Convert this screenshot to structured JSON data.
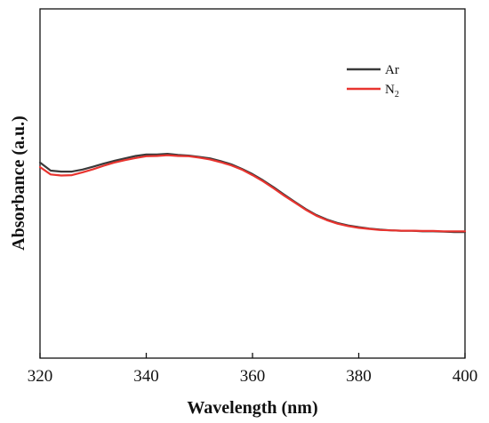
{
  "chart_data": {
    "type": "line",
    "xlabel": "Wavelength (nm)",
    "ylabel": "Absorbance (a.u.)",
    "xlim": [
      320,
      400
    ],
    "ylim": [
      0,
      1
    ],
    "x_ticks": [
      "320",
      "340",
      "360",
      "380",
      "400"
    ],
    "grid": false,
    "legend_position": "top-right",
    "series": [
      {
        "name": "Ar",
        "legend_main": "Ar",
        "legend_sub": "",
        "color": "#3a3a3a",
        "x": [
          320,
          322,
          324,
          326,
          328,
          330,
          332,
          334,
          336,
          338,
          340,
          342,
          344,
          346,
          348,
          350,
          352,
          354,
          356,
          358,
          360,
          362,
          364,
          366,
          368,
          370,
          372,
          374,
          376,
          378,
          380,
          382,
          384,
          386,
          388,
          390,
          392,
          394,
          396,
          398,
          400
        ],
        "values": [
          0.56,
          0.537,
          0.534,
          0.534,
          0.54,
          0.548,
          0.557,
          0.565,
          0.572,
          0.579,
          0.583,
          0.583,
          0.585,
          0.582,
          0.58,
          0.576,
          0.572,
          0.564,
          0.555,
          0.542,
          0.527,
          0.509,
          0.489,
          0.468,
          0.447,
          0.427,
          0.41,
          0.397,
          0.387,
          0.38,
          0.375,
          0.371,
          0.368,
          0.366,
          0.365,
          0.365,
          0.363,
          0.363,
          0.362,
          0.361,
          0.361
        ]
      },
      {
        "name": "N2",
        "legend_main": "N",
        "legend_sub": "2",
        "color": "#e8342f",
        "x": [
          320,
          322,
          324,
          326,
          328,
          330,
          332,
          334,
          336,
          338,
          340,
          342,
          344,
          346,
          348,
          350,
          352,
          354,
          356,
          358,
          360,
          362,
          364,
          366,
          368,
          370,
          372,
          374,
          376,
          378,
          380,
          382,
          384,
          386,
          388,
          390,
          392,
          394,
          396,
          398,
          400
        ],
        "values": [
          0.547,
          0.526,
          0.523,
          0.524,
          0.532,
          0.541,
          0.551,
          0.56,
          0.567,
          0.573,
          0.578,
          0.579,
          0.581,
          0.579,
          0.578,
          0.574,
          0.569,
          0.561,
          0.552,
          0.54,
          0.524,
          0.506,
          0.486,
          0.465,
          0.445,
          0.425,
          0.408,
          0.395,
          0.385,
          0.378,
          0.373,
          0.37,
          0.367,
          0.366,
          0.365,
          0.365,
          0.364,
          0.364,
          0.363,
          0.363,
          0.363
        ]
      }
    ]
  }
}
